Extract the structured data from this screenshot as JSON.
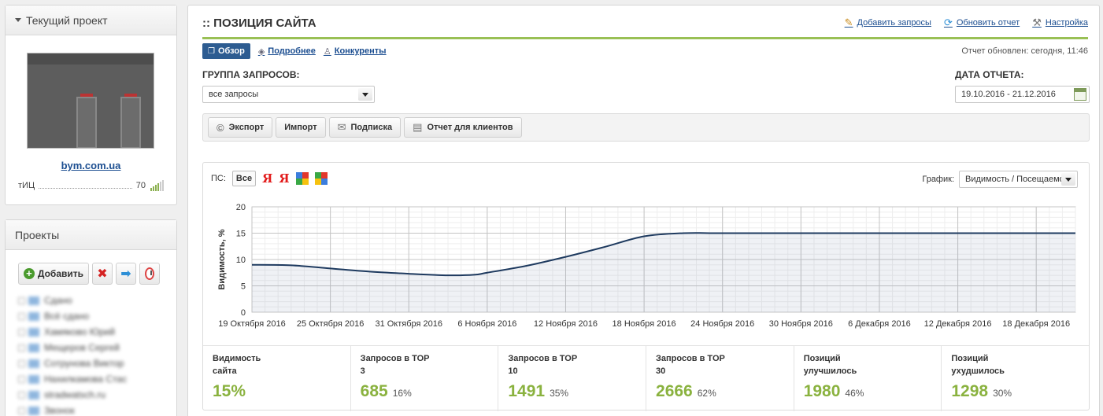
{
  "left": {
    "current_project": {
      "title": "Текущий проект",
      "site": "bym.com.ua",
      "tic_label": "тИЦ",
      "tic_value": "70"
    },
    "projects": {
      "title": "Проекты",
      "add_label": "Добавить",
      "items": [
        "Сдано",
        "Всё сдано",
        "Хамяково Юрий",
        "Мещеров Сергей",
        "Сотрунова Виктор",
        "Нахилкамова Стас",
        "stradwatsch.ru",
        "Звонок"
      ]
    }
  },
  "main": {
    "title": ":: ПОЗИЦИЯ САЙТА",
    "links": {
      "add_queries": "Добавить запросы",
      "refresh": "Обновить отчет",
      "settings": "Настройка"
    },
    "tabs": {
      "overview": "Обзор",
      "details": "Подробнее",
      "competitors": "Конкуренты"
    },
    "updated": "Отчет обновлен: сегодня, 11:46",
    "query_group": {
      "label": "ГРУППА ЗАПРОСОВ:",
      "value": "все запросы"
    },
    "report_date": {
      "label": "ДАТА ОТЧЕТА:",
      "value": "19.10.2016 - 21.12.2016"
    },
    "toolbar": {
      "export": "Экспорт",
      "import": "Импорт",
      "subscribe": "Подписка",
      "client_report": "Отчет для клиентов"
    },
    "chart_panel": {
      "ps_label": "ПС:",
      "ps_all": "Все",
      "yandex_glyph": "Я",
      "graph_label": "График:",
      "graph_value": "Видимость / Посещаемость"
    },
    "stats": [
      {
        "label": "Видимость сайта",
        "value": "15%",
        "pct": ""
      },
      {
        "label": "Запросов в TOP 3",
        "value": "685",
        "pct": "16%"
      },
      {
        "label": "Запросов в TOP 10",
        "value": "1491",
        "pct": "35%"
      },
      {
        "label": "Запросов в TOP 30",
        "value": "2666",
        "pct": "62%"
      },
      {
        "label": "Позиций улучшилось",
        "value": "1980",
        "pct": "46%"
      },
      {
        "label": "Позиций ухудшилось",
        "value": "1298",
        "pct": "30%"
      }
    ]
  },
  "colors": {
    "accent_green": "#8ab23f",
    "tab_active": "#2d5c91",
    "link": "#1d4f91",
    "line": "#1e3a5f"
  },
  "chart_data": {
    "type": "area",
    "ylabel": "Видимость, %",
    "ylim": [
      0,
      20
    ],
    "yticks": [
      0,
      5,
      10,
      15,
      20
    ],
    "xlim": [
      "2016-10-19",
      "2016-12-21"
    ],
    "xticks": [
      "19 Октября 2016",
      "25 Октября 2016",
      "31 Октября 2016",
      "6 Ноября 2016",
      "12 Ноября 2016",
      "18 Ноября 2016",
      "24 Ноября 2016",
      "30 Ноября 2016",
      "6 Декабря 2016",
      "12 Декабря 2016",
      "18 Декабря 2016"
    ],
    "series": [
      {
        "x": [
          "2016-10-19",
          "2016-10-22",
          "2016-10-25",
          "2016-10-28",
          "2016-10-31",
          "2016-11-03",
          "2016-11-05",
          "2016-11-06",
          "2016-11-09",
          "2016-11-12",
          "2016-11-15",
          "2016-11-18",
          "2016-11-21",
          "2016-11-24",
          "2016-11-30",
          "2016-12-06",
          "2016-12-12",
          "2016-12-18",
          "2016-12-21"
        ],
        "y": [
          9.0,
          8.9,
          8.3,
          7.7,
          7.3,
          7.0,
          7.1,
          7.5,
          8.8,
          10.5,
          12.4,
          14.4,
          15.0,
          15.0,
          15.0,
          15.0,
          15.0,
          15.0,
          15.0
        ]
      }
    ],
    "grid": true
  }
}
